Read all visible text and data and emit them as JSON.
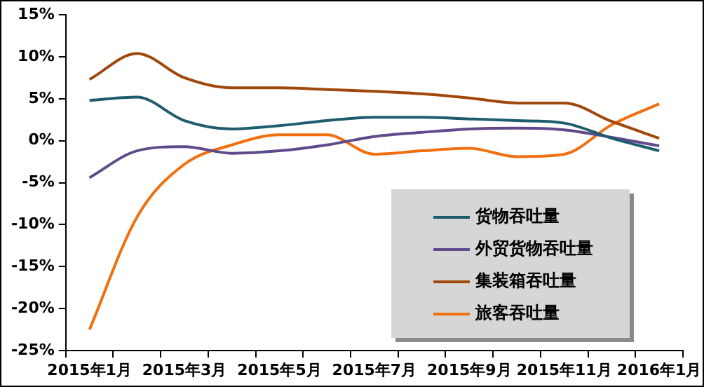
{
  "chart_data": {
    "type": "line",
    "categories": [
      "2015年1月",
      null,
      "2015年3月",
      null,
      "2015年5月",
      null,
      "2015年7月",
      null,
      "2015年9月",
      null,
      "2015年11月",
      null,
      "2016年1月"
    ],
    "series": [
      {
        "name": "货物吞吐量",
        "color": "#1f5c6e",
        "values": [
          4.8,
          5.2,
          2.4,
          1.4,
          1.8,
          2.4,
          2.8,
          2.8,
          2.6,
          2.4,
          2.1,
          0.3,
          -1.2
        ]
      },
      {
        "name": "外贸货物吞吐量",
        "color": "#5f4a8b",
        "values": [
          -4.4,
          -1.2,
          -0.7,
          -1.5,
          -1.2,
          -0.5,
          0.5,
          1.0,
          1.4,
          1.5,
          1.3,
          0.4,
          -0.6
        ]
      },
      {
        "name": "集装箱吞吐量",
        "color": "#a0480c",
        "values": [
          7.3,
          10.4,
          7.5,
          6.3,
          6.3,
          6.1,
          5.9,
          5.6,
          5.1,
          4.5,
          4.5,
          2.3,
          0.3
        ]
      },
      {
        "name": "旅客吞吐量",
        "color": "#f07010",
        "values": [
          -22.5,
          -9.1,
          -2.8,
          -0.5,
          0.7,
          0.7,
          -1.6,
          -1.2,
          -0.9,
          -1.9,
          -1.6,
          1.9,
          4.4
        ]
      }
    ],
    "ylim": [
      -25,
      15
    ],
    "yticks": [
      {
        "value": -25,
        "label": "-25%"
      },
      {
        "value": -20,
        "label": "-20%"
      },
      {
        "value": -15,
        "label": "-15%"
      },
      {
        "value": -10,
        "label": "-10%"
      },
      {
        "value": -5,
        "label": "-5%"
      },
      {
        "value": 0,
        "label": "0%"
      },
      {
        "value": 5,
        "label": "5%"
      },
      {
        "value": 10,
        "label": "10%"
      },
      {
        "value": 15,
        "label": "15%"
      }
    ],
    "grid": false,
    "legend": "bottom right"
  }
}
